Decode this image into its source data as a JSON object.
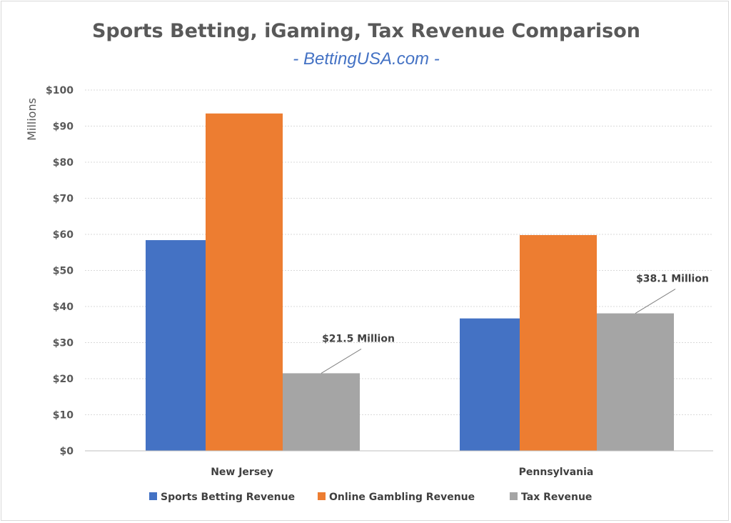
{
  "chart_data": {
    "type": "bar",
    "title": "Sports Betting, iGaming, Tax Revenue Comparison",
    "subtitle": "- BettingUSA.com -",
    "ylabel": "Millions",
    "xlabel": "",
    "ylim": [
      0,
      100
    ],
    "ytick_step": 10,
    "ytick_format": "$",
    "grid": true,
    "legend_position": "bottom",
    "categories": [
      "New Jersey",
      "Pennsylvania"
    ],
    "series": [
      {
        "name": "Sports Betting Revenue",
        "color": "#4472c4",
        "values": [
          58.4,
          36.7
        ]
      },
      {
        "name": "Online Gambling Revenue",
        "color": "#ed7d31",
        "values": [
          93.5,
          59.8
        ]
      },
      {
        "name": "Tax Revenue",
        "color": "#a5a5a5",
        "values": [
          21.5,
          38.1
        ]
      }
    ],
    "annotations": [
      {
        "series": 2,
        "category": 0,
        "text": "$21.5 Million"
      },
      {
        "series": 2,
        "category": 1,
        "text": "$38.1 Million"
      }
    ]
  }
}
